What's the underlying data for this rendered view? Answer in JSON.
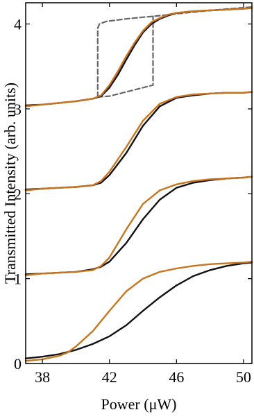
{
  "chart_data": {
    "type": "line",
    "title": "",
    "xlabel": "Power (μW)",
    "ylabel": "Transmitted Intensity (arb. units)",
    "xlim": [
      37,
      50.5
    ],
    "ylim": [
      0,
      4.25
    ],
    "xticks": [
      38,
      42,
      46,
      50
    ],
    "yticks": [
      0,
      1,
      2,
      3,
      4
    ],
    "grid": false,
    "legend": "none",
    "colors": {
      "black": "#111111",
      "orange": "#c8741e",
      "dashed": "#666666"
    },
    "series": [
      {
        "color": "black",
        "style": "solid",
        "x": [
          37,
          38,
          39,
          40,
          41,
          42,
          43,
          44,
          45,
          46,
          47,
          48,
          49,
          50,
          50.5
        ],
        "y": [
          0.06,
          0.08,
          0.11,
          0.16,
          0.23,
          0.32,
          0.45,
          0.62,
          0.78,
          0.92,
          1.03,
          1.1,
          1.15,
          1.18,
          1.19
        ]
      },
      {
        "color": "orange",
        "style": "solid",
        "x": [
          37,
          38,
          39,
          39.5,
          40,
          41,
          42,
          43,
          44,
          45,
          46,
          47,
          48,
          49,
          50,
          50.5
        ],
        "y": [
          0.03,
          0.05,
          0.09,
          0.13,
          0.2,
          0.38,
          0.62,
          0.85,
          1.0,
          1.08,
          1.12,
          1.15,
          1.17,
          1.18,
          1.19,
          1.2
        ]
      },
      {
        "color": "black",
        "style": "solid",
        "x": [
          37,
          38,
          39,
          40,
          41,
          41.5,
          42,
          43,
          44,
          45,
          46,
          47,
          48,
          49,
          50,
          50.5
        ],
        "y": [
          1.05,
          1.06,
          1.07,
          1.08,
          1.11,
          1.14,
          1.2,
          1.42,
          1.7,
          1.93,
          2.07,
          2.13,
          2.16,
          2.18,
          2.19,
          2.2
        ]
      },
      {
        "color": "orange",
        "style": "solid",
        "x": [
          37,
          38,
          39,
          40,
          41,
          41.5,
          42,
          43,
          44,
          45,
          46,
          47,
          48,
          49,
          50,
          50.5
        ],
        "y": [
          1.04,
          1.06,
          1.07,
          1.08,
          1.1,
          1.15,
          1.25,
          1.58,
          1.88,
          2.04,
          2.11,
          2.15,
          2.17,
          2.18,
          2.19,
          2.2
        ]
      },
      {
        "color": "black",
        "style": "solid",
        "x": [
          37,
          38,
          39,
          40,
          41,
          41.5,
          42,
          43,
          44,
          45,
          46,
          47,
          48,
          49,
          50,
          50.5
        ],
        "y": [
          2.05,
          2.06,
          2.07,
          2.08,
          2.1,
          2.13,
          2.22,
          2.48,
          2.8,
          3.03,
          3.13,
          3.16,
          3.18,
          3.19,
          3.19,
          3.2
        ]
      },
      {
        "color": "orange",
        "style": "solid",
        "x": [
          37,
          38,
          39,
          40,
          41,
          41.5,
          42,
          43,
          44,
          45,
          46,
          47,
          48,
          49,
          50,
          50.5
        ],
        "y": [
          2.04,
          2.06,
          2.07,
          2.08,
          2.1,
          2.15,
          2.26,
          2.55,
          2.86,
          3.06,
          3.14,
          3.17,
          3.18,
          3.19,
          3.19,
          3.2
        ]
      },
      {
        "color": "black",
        "style": "solid",
        "x": [
          37,
          38,
          39,
          40,
          41,
          41.5,
          42,
          42.5,
          43,
          43.5,
          44,
          44.5,
          45,
          45.5,
          46,
          47,
          48,
          49,
          50,
          50.5
        ],
        "y": [
          3.04,
          3.05,
          3.07,
          3.09,
          3.12,
          3.15,
          3.25,
          3.4,
          3.58,
          3.75,
          3.9,
          4.0,
          4.06,
          4.1,
          4.13,
          4.15,
          4.16,
          4.17,
          4.18,
          4.19
        ]
      },
      {
        "color": "orange",
        "style": "solid",
        "x": [
          37,
          38,
          39,
          40,
          41,
          41.5,
          42,
          42.5,
          43,
          43.5,
          44,
          44.5,
          45,
          45.5,
          46,
          47,
          48,
          49,
          50,
          50.5
        ],
        "y": [
          3.03,
          3.05,
          3.07,
          3.09,
          3.12,
          3.16,
          3.28,
          3.44,
          3.62,
          3.78,
          3.92,
          4.02,
          4.07,
          4.11,
          4.13,
          4.15,
          4.16,
          4.17,
          4.18,
          4.19
        ]
      },
      {
        "color": "dashed",
        "style": "dashed",
        "x": [
          41.3,
          41.3,
          41.4,
          41.8,
          43,
          44,
          44.6,
          44.6,
          46,
          48,
          50.5
        ],
        "y": [
          3.14,
          3.95,
          4.0,
          4.03,
          4.06,
          4.08,
          4.09,
          4.09,
          4.12,
          4.16,
          4.2
        ]
      },
      {
        "color": "dashed",
        "style": "dashed",
        "x": [
          41.3,
          42,
          43,
          44,
          44.6,
          44.6
        ],
        "y": [
          3.14,
          3.15,
          3.2,
          3.25,
          3.28,
          4.09
        ]
      }
    ]
  }
}
